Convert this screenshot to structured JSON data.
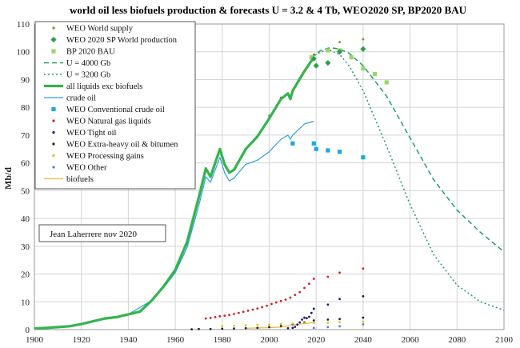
{
  "chart_data": {
    "type": "line",
    "title": "world oil less biofuels production & forecasts U = 3.2 & 4 Tb, WEO2020 SP, BP2020 BAU",
    "ylabel": "Mb/d",
    "xlabel": "",
    "xlim": [
      1900,
      2100
    ],
    "ylim": [
      0,
      110
    ],
    "xticks": [
      "1900",
      "1920",
      "1940",
      "1960",
      "1980",
      "2000",
      "2020",
      "2040",
      "2060",
      "2080",
      "2100"
    ],
    "yticks": [
      "0",
      "10",
      "20",
      "30",
      "40",
      "50",
      "60",
      "70",
      "80",
      "90",
      "100",
      "110"
    ],
    "grid": true,
    "legend_position": "top-left",
    "annotation": "Jean Laherrere nov 2020",
    "series": [
      {
        "name": "WEO World supply",
        "kind": "points",
        "color": "#6a9a1f",
        "x": [
          2000,
          2005,
          2010,
          2015,
          2019,
          2025,
          2030,
          2040
        ],
        "y": [
          77,
          83.5,
          86,
          93,
          99,
          100.5,
          103.5,
          104.5
        ]
      },
      {
        "name": "WEO 2020 SP World production",
        "kind": "diamonds",
        "color": "#2e9e4e",
        "x": [
          2019,
          2020,
          2025,
          2030,
          2040
        ],
        "y": [
          97.5,
          95,
          96,
          100,
          101
        ]
      },
      {
        "name": "BP 2020 BAU",
        "kind": "squares",
        "color": "#9bd66a",
        "x": [
          2018,
          2025,
          2030,
          2035,
          2040,
          2045,
          2050
        ],
        "y": [
          98,
          100.5,
          100.5,
          98,
          94,
          92,
          89
        ]
      },
      {
        "name": "U = 4000 Gb",
        "kind": "dashed",
        "color": "#1f9e66",
        "x": [
          2018,
          2022,
          2026,
          2030,
          2034,
          2040,
          2050,
          2060,
          2070,
          2080,
          2090,
          2100
        ],
        "y": [
          98,
          100.5,
          101.5,
          101,
          99.5,
          95,
          84,
          69,
          54,
          43,
          35,
          28
        ]
      },
      {
        "name": "U = 3200 Gb",
        "kind": "dotted",
        "color": "#1f9e66",
        "x": [
          2018,
          2022,
          2026,
          2030,
          2034,
          2040,
          2050,
          2060,
          2070,
          2080,
          2090,
          2100
        ],
        "y": [
          98,
          100,
          100.5,
          99,
          95,
          86,
          66,
          45,
          27,
          16,
          10,
          7
        ]
      },
      {
        "name": "all liquids exc biofuels",
        "kind": "thick",
        "color": "#34b34e",
        "x": [
          1900,
          1905,
          1910,
          1915,
          1920,
          1925,
          1930,
          1935,
          1940,
          1945,
          1950,
          1955,
          1960,
          1965,
          1970,
          1973,
          1975,
          1979,
          1981,
          1983,
          1985,
          1990,
          1995,
          2000,
          2005,
          2008,
          2009,
          2010,
          2015,
          2019
        ],
        "y": [
          0.4,
          0.6,
          0.9,
          1.2,
          2,
          3,
          4,
          4.5,
          5.5,
          6.5,
          10.5,
          15.5,
          21.5,
          31.5,
          47.5,
          58,
          55,
          65,
          59.5,
          56.5,
          57.5,
          65,
          69.5,
          76,
          83,
          85,
          83,
          86,
          93,
          98
        ]
      },
      {
        "name": "crude oil",
        "kind": "thin",
        "color": "#2b9fe0",
        "x": [
          1900,
          1910,
          1920,
          1930,
          1940,
          1950,
          1955,
          1960,
          1965,
          1970,
          1973,
          1975,
          1979,
          1981,
          1983,
          1985,
          1990,
          1995,
          2000,
          2005,
          2008,
          2009,
          2010,
          2015,
          2019
        ],
        "y": [
          0.4,
          0.9,
          2,
          4,
          5.5,
          10.5,
          15,
          20.5,
          29.5,
          44.5,
          55,
          53,
          62,
          56.5,
          53.5,
          54.5,
          59.5,
          61,
          64,
          68.5,
          70,
          68.5,
          70,
          74,
          75
        ]
      },
      {
        "name": "WEO Conventional crude oil",
        "kind": "squares",
        "color": "#1fa7e0",
        "x": [
          2010,
          2019,
          2020,
          2025,
          2030,
          2040
        ],
        "y": [
          67,
          67,
          65,
          64.5,
          64,
          62
        ]
      },
      {
        "name": "WEO Natural gas liquids",
        "kind": "points",
        "color": "#d42020",
        "x": [
          1973,
          1975,
          1977,
          1979,
          1981,
          1983,
          1985,
          1987,
          1989,
          1991,
          1993,
          1995,
          1997,
          1999,
          2001,
          2003,
          2005,
          2007,
          2009,
          2011,
          2013,
          2015,
          2017,
          2019,
          2025,
          2030,
          2040
        ],
        "y": [
          4,
          4.2,
          4.5,
          4.8,
          5,
          5.3,
          5.6,
          6,
          6.4,
          6.8,
          7.2,
          7.6,
          8.1,
          8.6,
          9.2,
          9.8,
          10.3,
          10.8,
          11.5,
          12.5,
          13.5,
          15,
          16.5,
          18.3,
          19,
          20.5,
          22
        ]
      },
      {
        "name": "WEO Tight oil",
        "kind": "points",
        "color": "#1a1a6a",
        "x": [
          2008,
          2010,
          2011,
          2012,
          2013,
          2014,
          2015,
          2016,
          2017,
          2018,
          2019,
          2025,
          2030,
          2040
        ],
        "y": [
          0.5,
          0.6,
          1,
          1.8,
          2.6,
          3.6,
          4.3,
          4.1,
          4.6,
          6,
          7.5,
          9,
          11,
          12
        ]
      },
      {
        "name": "WEO Extra-heavy oil & bitumen",
        "kind": "points",
        "color": "#222222",
        "x": [
          1967,
          1970,
          1975,
          1980,
          1985,
          1990,
          1995,
          2000,
          2005,
          2010,
          2015,
          2019,
          2025,
          2030,
          2040
        ],
        "y": [
          0.1,
          0.2,
          0.2,
          0.3,
          0.4,
          0.5,
          0.6,
          0.9,
          1.3,
          1.9,
          2.6,
          3.3,
          3.6,
          3.8,
          4.3
        ]
      },
      {
        "name": "WEO Processing gains",
        "kind": "points",
        "color": "#d9c12a",
        "x": [
          1980,
          1985,
          1990,
          1995,
          2000,
          2005,
          2010,
          2015,
          2019,
          2025,
          2030,
          2040
        ],
        "y": [
          1.3,
          1.4,
          1.5,
          1.7,
          1.8,
          2,
          2.2,
          2.3,
          2.4,
          2.5,
          2.7,
          2.9
        ]
      },
      {
        "name": "WEO Other",
        "kind": "points",
        "color": "#5577cc",
        "x": [
          2019,
          2025,
          2030,
          2040
        ],
        "y": [
          0.6,
          0.9,
          1.2,
          1.9
        ]
      },
      {
        "name": "biofuels",
        "kind": "thin",
        "color": "#f2b43a",
        "x": [
          1990,
          1995,
          2000,
          2005,
          2008,
          2010,
          2015,
          2019
        ],
        "y": [
          0.5,
          0.6,
          0.7,
          0.9,
          1.4,
          1.8,
          2.1,
          2.6
        ]
      }
    ]
  }
}
